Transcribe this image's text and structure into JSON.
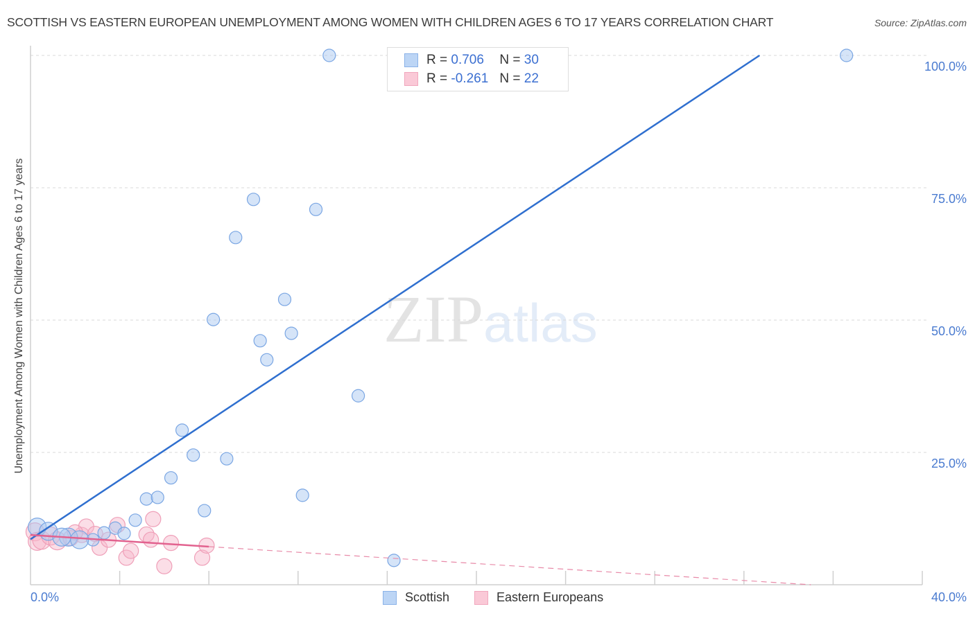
{
  "header": {
    "title": "SCOTTISH VS EASTERN EUROPEAN UNEMPLOYMENT AMONG WOMEN WITH CHILDREN AGES 6 TO 17 YEARS CORRELATION CHART",
    "source": "Source: ZipAtlas.com"
  },
  "watermark": {
    "zip": "ZIP",
    "atlas": "atlas"
  },
  "axes": {
    "ylabel": "Unemployment Among Women with Children Ages 6 to 17 years",
    "yticks": [
      "100.0%",
      "75.0%",
      "50.0%",
      "25.0%"
    ],
    "x_min_label": "0.0%",
    "x_max_label": "40.0%"
  },
  "legend": {
    "rows": [
      {
        "r_label": "R =",
        "r_value": "0.706",
        "n_label": "N =",
        "n_value": "30",
        "color": "#a9c8f0"
      },
      {
        "r_label": "R =",
        "r_value": "-0.261",
        "n_label": "N =",
        "n_value": "22",
        "color": "#f7bccd"
      }
    ]
  },
  "bottom_legend": {
    "items": [
      {
        "label": "Scottish",
        "color": "#a9c8f0"
      },
      {
        "label": "Eastern Europeans",
        "color": "#f7bccd"
      }
    ]
  },
  "chart_data": {
    "type": "scatter",
    "title": "SCOTTISH VS EASTERN EUROPEAN UNEMPLOYMENT AMONG WOMEN WITH CHILDREN AGES 6 TO 17 YEARS CORRELATION CHART",
    "xlabel": "",
    "ylabel": "Unemployment Among Women with Children Ages 6 to 17 years",
    "xlim": [
      0,
      40
    ],
    "ylim": [
      0,
      100
    ],
    "x_tick_labels": [
      "0.0%",
      "40.0%"
    ],
    "y_tick_labels": [
      "25.0%",
      "50.0%",
      "75.0%",
      "100.0%"
    ],
    "grid": true,
    "legend_position": "top-center",
    "series": [
      {
        "name": "Scottish",
        "color": "#6f9fe0",
        "R": 0.706,
        "N": 30,
        "points": [
          [
            13.4,
            100.0
          ],
          [
            36.6,
            100.0
          ],
          [
            10.0,
            72.8
          ],
          [
            12.8,
            70.9
          ],
          [
            9.2,
            65.6
          ],
          [
            11.4,
            53.9
          ],
          [
            8.2,
            50.1
          ],
          [
            10.3,
            46.1
          ],
          [
            11.7,
            47.5
          ],
          [
            10.6,
            42.5
          ],
          [
            14.7,
            35.7
          ],
          [
            6.8,
            29.2
          ],
          [
            7.3,
            24.5
          ],
          [
            8.8,
            23.8
          ],
          [
            6.3,
            20.2
          ],
          [
            5.2,
            16.2
          ],
          [
            5.7,
            16.5
          ],
          [
            12.2,
            16.9
          ],
          [
            7.8,
            14.0
          ],
          [
            4.7,
            12.2
          ],
          [
            3.8,
            10.7
          ],
          [
            4.2,
            9.7
          ],
          [
            3.3,
            9.8
          ],
          [
            2.8,
            8.5
          ],
          [
            0.3,
            10.9
          ],
          [
            0.8,
            10.1
          ],
          [
            1.7,
            9.0
          ],
          [
            2.2,
            8.5
          ],
          [
            1.4,
            9.0
          ],
          [
            16.3,
            4.6
          ]
        ],
        "trendline": {
          "x": [
            0.0,
            32.7
          ],
          "y": [
            8.6,
            100.0
          ],
          "style": "solid"
        }
      },
      {
        "name": "Eastern Europeans",
        "color": "#ee8fae",
        "R": -0.261,
        "N": 22,
        "points": [
          [
            0.2,
            10.0
          ],
          [
            0.3,
            8.2
          ],
          [
            0.5,
            8.4
          ],
          [
            0.9,
            9.2
          ],
          [
            1.2,
            8.3
          ],
          [
            1.8,
            8.8
          ],
          [
            2.3,
            9.4
          ],
          [
            2.5,
            11.0
          ],
          [
            2.9,
            9.6
          ],
          [
            3.1,
            7.0
          ],
          [
            3.5,
            8.5
          ],
          [
            3.9,
            11.3
          ],
          [
            4.3,
            5.1
          ],
          [
            4.5,
            6.4
          ],
          [
            5.2,
            9.5
          ],
          [
            5.4,
            8.5
          ],
          [
            5.5,
            12.4
          ],
          [
            6.0,
            3.5
          ],
          [
            6.3,
            7.9
          ],
          [
            7.7,
            5.1
          ],
          [
            7.9,
            7.4
          ],
          [
            2.0,
            9.9
          ]
        ],
        "trendline": {
          "x": [
            0.0,
            8.0
          ],
          "y": [
            9.4,
            7.2
          ],
          "style": "solid",
          "extended_dashed_to_x": 35.0,
          "extended_y": 0.0
        }
      }
    ]
  }
}
